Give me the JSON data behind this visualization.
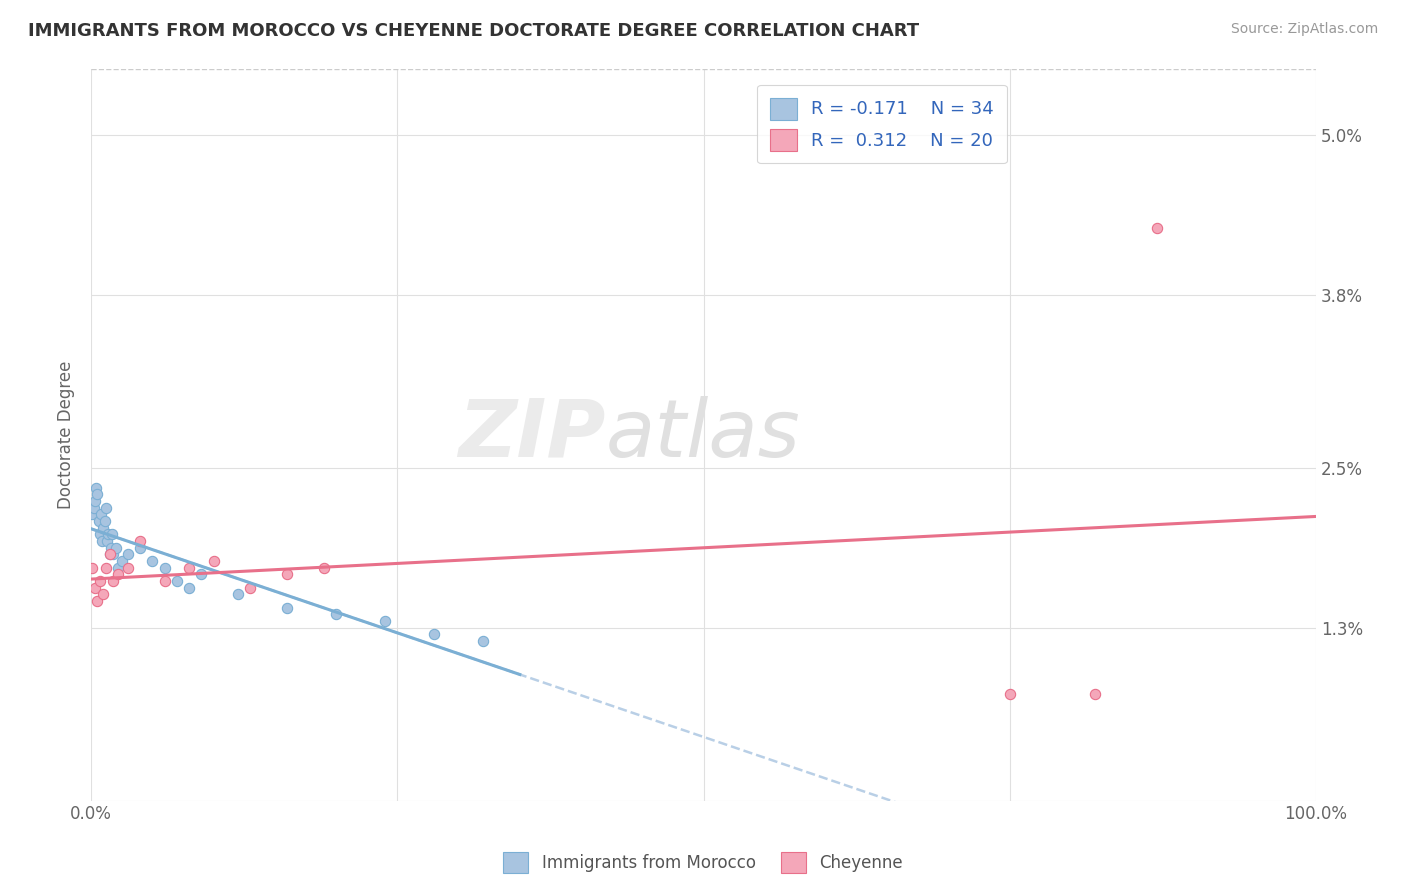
{
  "title": "IMMIGRANTS FROM MOROCCO VS CHEYENNE DOCTORATE DEGREE CORRELATION CHART",
  "source": "Source: ZipAtlas.com",
  "ylabel": "Doctorate Degree",
  "xlim": [
    0.0,
    1.0
  ],
  "ylim": [
    0.0,
    0.055
  ],
  "xticks": [
    0.0,
    0.25,
    0.5,
    0.75,
    1.0
  ],
  "xticklabels": [
    "0.0%",
    "",
    "",
    "",
    "100.0%"
  ],
  "yticks": [
    0.0,
    0.013,
    0.025,
    0.038,
    0.05
  ],
  "yticklabels": [
    "",
    "1.3%",
    "2.5%",
    "3.8%",
    "5.0%"
  ],
  "legend_r1": "R = -0.171",
  "legend_n1": "N = 34",
  "legend_r2": "R =  0.312",
  "legend_n2": "N = 20",
  "color_blue": "#a8c4e0",
  "color_pink": "#f4a7b9",
  "edge_blue": "#7bafd4",
  "edge_pink": "#e8708a",
  "line_blue_solid": "#7bafd4",
  "line_blue_dash": "#a8c4e0",
  "line_pink_solid": "#e8708a",
  "blue_x": [
    0.001,
    0.002,
    0.003,
    0.004,
    0.005,
    0.006,
    0.007,
    0.008,
    0.009,
    0.01,
    0.011,
    0.012,
    0.013,
    0.014,
    0.015,
    0.016,
    0.017,
    0.018,
    0.02,
    0.022,
    0.025,
    0.03,
    0.04,
    0.05,
    0.06,
    0.07,
    0.08,
    0.09,
    0.12,
    0.16,
    0.2,
    0.24,
    0.28,
    0.32
  ],
  "blue_y": [
    0.0215,
    0.022,
    0.0225,
    0.0235,
    0.023,
    0.021,
    0.02,
    0.0215,
    0.0195,
    0.0205,
    0.021,
    0.022,
    0.0195,
    0.02,
    0.0185,
    0.019,
    0.02,
    0.0185,
    0.019,
    0.0175,
    0.018,
    0.0185,
    0.019,
    0.018,
    0.0175,
    0.0165,
    0.016,
    0.017,
    0.0155,
    0.0145,
    0.014,
    0.0135,
    0.0125,
    0.012
  ],
  "pink_x": [
    0.001,
    0.003,
    0.005,
    0.007,
    0.01,
    0.012,
    0.015,
    0.018,
    0.022,
    0.03,
    0.04,
    0.06,
    0.08,
    0.1,
    0.13,
    0.16,
    0.19,
    0.75,
    0.82,
    0.87
  ],
  "pink_y": [
    0.0175,
    0.016,
    0.015,
    0.0165,
    0.0155,
    0.0175,
    0.0185,
    0.0165,
    0.017,
    0.0175,
    0.0195,
    0.0165,
    0.0175,
    0.018,
    0.016,
    0.017,
    0.0175,
    0.008,
    0.008,
    0.043
  ],
  "blue_line_x": [
    0.0,
    1.0
  ],
  "blue_line_y_start": 0.0215,
  "blue_line_y_end": 0.013,
  "pink_line_x": [
    0.0,
    1.0
  ],
  "pink_line_y_start": 0.014,
  "pink_line_y_end": 0.025
}
